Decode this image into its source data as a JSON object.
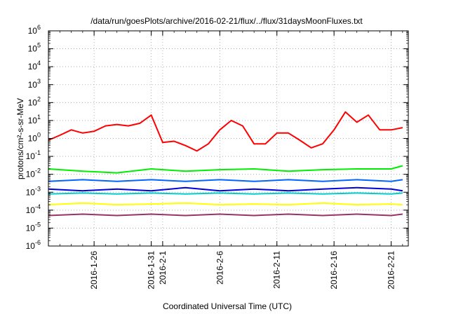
{
  "chart_data": {
    "type": "line",
    "title": "/data/run/goesPlots/archive/2016-02-21/flux/../flux/31daysMoonFluxes.txt",
    "xlabel": "Coordinated Universal Time (UTC)",
    "ylabel": "protons/cm²-s-sr-MeV",
    "ylog": true,
    "ylim": [
      1e-06,
      1000000.0
    ],
    "xlim": [
      "2016-01-22T00:00",
      "2016-02-22T12:00"
    ],
    "grid": true,
    "legend": "none",
    "yticks": [
      {
        "base": "10",
        "exp": "-6"
      },
      {
        "base": "10",
        "exp": "-5"
      },
      {
        "base": "10",
        "exp": "-4"
      },
      {
        "base": "10",
        "exp": "-3"
      },
      {
        "base": "10",
        "exp": "-2"
      },
      {
        "base": "10",
        "exp": "-1"
      },
      {
        "base": "10",
        "exp": "0"
      },
      {
        "base": "10",
        "exp": "1"
      },
      {
        "base": "10",
        "exp": "2"
      },
      {
        "base": "10",
        "exp": "3"
      },
      {
        "base": "10",
        "exp": "4"
      },
      {
        "base": "10",
        "exp": "5"
      },
      {
        "base": "10",
        "exp": "6"
      }
    ],
    "xticks": [
      {
        "date": "2016-01-26",
        "label": "2016-1-26"
      },
      {
        "date": "2016-01-31",
        "label": "2016-1-31"
      },
      {
        "date": "2016-02-01",
        "label": "2016-2-1"
      },
      {
        "date": "2016-02-06",
        "label": "2016-2-6"
      },
      {
        "date": "2016-02-11",
        "label": "2016-2-11"
      },
      {
        "date": "2016-02-16",
        "label": "2016-2-16"
      },
      {
        "date": "2016-02-21",
        "label": "2016-2-21"
      }
    ],
    "series": [
      {
        "color": "#ff0000",
        "x": [
          "2016-01-22",
          "2016-01-23",
          "2016-01-24",
          "2016-01-25",
          "2016-01-26",
          "2016-01-27",
          "2016-01-28",
          "2016-01-29",
          "2016-01-30",
          "2016-01-31",
          "2016-02-01",
          "2016-02-02",
          "2016-02-03",
          "2016-02-04",
          "2016-02-05",
          "2016-02-06",
          "2016-02-07",
          "2016-02-08",
          "2016-02-09",
          "2016-02-10",
          "2016-02-11",
          "2016-02-12",
          "2016-02-13",
          "2016-02-14",
          "2016-02-15",
          "2016-02-16",
          "2016-02-17",
          "2016-02-18",
          "2016-02-19",
          "2016-02-20",
          "2016-02-21",
          "2016-02-22"
        ],
        "values": [
          0.8,
          1.5,
          3,
          2,
          2.5,
          5,
          6,
          5,
          7,
          20,
          0.6,
          0.7,
          0.4,
          0.2,
          0.5,
          3,
          10,
          5,
          0.5,
          0.5,
          2,
          2,
          0.8,
          0.3,
          0.5,
          3,
          30,
          8,
          20,
          3,
          3,
          4
        ]
      },
      {
        "color": "#00ee00",
        "x": [
          "2016-01-22",
          "2016-01-25",
          "2016-01-28",
          "2016-01-31",
          "2016-02-03",
          "2016-02-06",
          "2016-02-09",
          "2016-02-12",
          "2016-02-15",
          "2016-02-18",
          "2016-02-21",
          "2016-02-22"
        ],
        "values": [
          0.02,
          0.015,
          0.012,
          0.02,
          0.015,
          0.018,
          0.02,
          0.015,
          0.018,
          0.02,
          0.02,
          0.03
        ]
      },
      {
        "color": "#0066ff",
        "x": [
          "2016-01-22",
          "2016-01-25",
          "2016-01-28",
          "2016-01-31",
          "2016-02-03",
          "2016-02-06",
          "2016-02-09",
          "2016-02-12",
          "2016-02-15",
          "2016-02-18",
          "2016-02-21",
          "2016-02-22"
        ],
        "values": [
          0.004,
          0.005,
          0.004,
          0.005,
          0.004,
          0.005,
          0.004,
          0.005,
          0.004,
          0.005,
          0.004,
          0.005
        ]
      },
      {
        "color": "#00cccc",
        "x": [
          "2016-01-22",
          "2016-01-25",
          "2016-01-28",
          "2016-01-31",
          "2016-02-03",
          "2016-02-06",
          "2016-02-09",
          "2016-02-12",
          "2016-02-15",
          "2016-02-18",
          "2016-02-21",
          "2016-02-22"
        ],
        "values": [
          0.0008,
          0.0009,
          0.0008,
          0.0009,
          0.0008,
          0.0009,
          0.0008,
          0.0009,
          0.0008,
          0.0009,
          0.0008,
          0.0009
        ]
      },
      {
        "color": "#0000dd",
        "x": [
          "2016-01-22",
          "2016-01-25",
          "2016-01-28",
          "2016-01-31",
          "2016-02-03",
          "2016-02-06",
          "2016-02-09",
          "2016-02-12",
          "2016-02-15",
          "2016-02-18",
          "2016-02-21",
          "2016-02-22"
        ],
        "values": [
          0.0015,
          0.0012,
          0.0015,
          0.0012,
          0.0018,
          0.0012,
          0.0015,
          0.0012,
          0.0015,
          0.0018,
          0.0015,
          0.0012
        ]
      },
      {
        "color": "#ffff00",
        "x": [
          "2016-01-22",
          "2016-01-25",
          "2016-01-28",
          "2016-01-31",
          "2016-02-03",
          "2016-02-06",
          "2016-02-09",
          "2016-02-12",
          "2016-02-15",
          "2016-02-18",
          "2016-02-21",
          "2016-02-22"
        ],
        "values": [
          0.0002,
          0.00025,
          0.0002,
          0.00022,
          0.00025,
          0.0002,
          0.00022,
          0.0002,
          0.00025,
          0.0002,
          0.00022,
          0.0002
        ]
      },
      {
        "color": "#993366",
        "x": [
          "2016-01-22",
          "2016-01-25",
          "2016-01-28",
          "2016-01-31",
          "2016-02-03",
          "2016-02-06",
          "2016-02-09",
          "2016-02-12",
          "2016-02-15",
          "2016-02-18",
          "2016-02-21",
          "2016-02-22"
        ],
        "values": [
          5e-05,
          6e-05,
          5e-05,
          6e-05,
          5e-05,
          6e-05,
          5e-05,
          6e-05,
          5e-05,
          6e-05,
          5e-05,
          6e-05
        ]
      }
    ]
  }
}
